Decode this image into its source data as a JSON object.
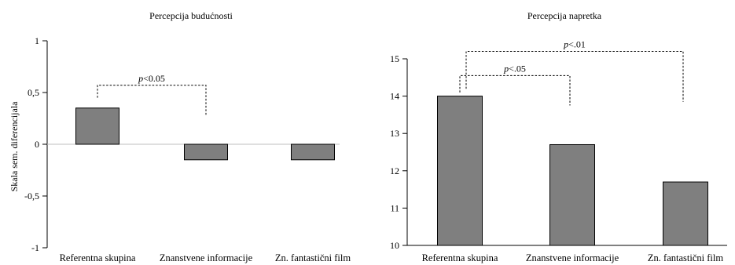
{
  "chart_data": [
    {
      "type": "bar",
      "title": "Percepcija budućnosti",
      "ylabel": "Skala sem. diferencijala",
      "xlabel": "",
      "categories": [
        "Referentna skupina",
        "Znanstvene informacije",
        "Zn. fantastični film"
      ],
      "values": [
        0.35,
        -0.15,
        -0.15
      ],
      "ylim": [
        -1,
        1
      ],
      "yticks": [
        {
          "value": -1,
          "label": "-1"
        },
        {
          "value": -0.5,
          "label": "-0,5"
        },
        {
          "value": 0,
          "label": "0"
        },
        {
          "value": 0.5,
          "label": "0,5"
        },
        {
          "value": 1,
          "label": "1"
        }
      ],
      "grid": false,
      "annotations": [
        {
          "from": 0,
          "to": 1,
          "p_symbol": "p",
          "text": "<0.05",
          "level": 0.57,
          "from_end": 0.45,
          "to_end": 0.27
        }
      ]
    },
    {
      "type": "bar",
      "title": "Percepcija napretka",
      "ylabel": "",
      "xlabel": "",
      "categories": [
        "Referentna skupina",
        "Znanstvene informacije",
        "Zn. fantastični film"
      ],
      "values": [
        14.0,
        12.7,
        11.7
      ],
      "ylim": [
        10,
        15
      ],
      "yticks": [
        {
          "value": 10,
          "label": "10"
        },
        {
          "value": 11,
          "label": "11"
        },
        {
          "value": 12,
          "label": "12"
        },
        {
          "value": 13,
          "label": "13"
        },
        {
          "value": 14,
          "label": "14"
        },
        {
          "value": 15,
          "label": "15"
        }
      ],
      "grid": false,
      "annotations": [
        {
          "from": 0,
          "to": 1,
          "p_symbol": "p",
          "text": "<.05",
          "level": 14.55,
          "from_end": 14.1,
          "to_end": 13.75
        },
        {
          "from": 0,
          "to": 2,
          "p_symbol": "p",
          "text": "<.01",
          "level": 15.2,
          "from_end": 14.2,
          "to_end": 13.85
        }
      ]
    }
  ]
}
